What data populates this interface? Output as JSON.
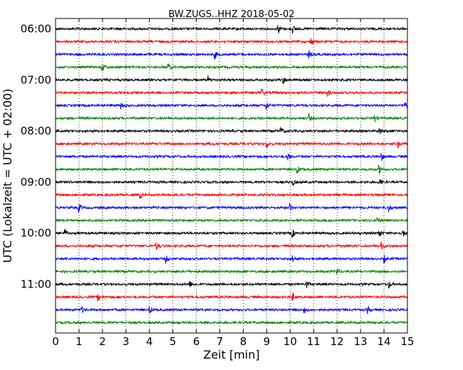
{
  "chart_data": {
    "type": "line",
    "title": "BW.ZUGS..HHZ 2018-05-02",
    "xlabel": "Zeit  [min]",
    "ylabel": "UTC (Lokalzeit = UTC + 02:00)",
    "xlim": [
      0,
      15
    ],
    "x_ticks": [
      "0",
      "1",
      "2",
      "3",
      "4",
      "5",
      "6",
      "7",
      "8",
      "9",
      "10",
      "11",
      "12",
      "13",
      "14",
      "15"
    ],
    "y_ticks": [
      "06:00",
      "07:00",
      "08:00",
      "09:00",
      "10:00",
      "11:00"
    ],
    "grid": "vertical dotted at each minute",
    "legend": "none",
    "color_cycle": [
      "#000000",
      "#ff0000",
      "#0000ff",
      "#008000"
    ],
    "traces": [
      {
        "start": "06:00",
        "color": "#000000",
        "events": [
          9.5,
          10.1
        ]
      },
      {
        "start": "06:15",
        "color": "#ff0000",
        "events": [
          10.9
        ]
      },
      {
        "start": "06:30",
        "color": "#0000ff",
        "events": [
          6.8,
          10.8
        ]
      },
      {
        "start": "06:45",
        "color": "#008000",
        "events": [
          2.0,
          4.8
        ]
      },
      {
        "start": "07:00",
        "color": "#000000",
        "events": [
          6.5,
          9.7
        ]
      },
      {
        "start": "07:15",
        "color": "#ff0000",
        "events": [
          8.8,
          11.6
        ]
      },
      {
        "start": "07:30",
        "color": "#0000ff",
        "events": [
          2.8,
          9.0,
          14.9
        ]
      },
      {
        "start": "07:45",
        "color": "#008000",
        "events": [
          10.8,
          13.6
        ]
      },
      {
        "start": "08:00",
        "color": "#000000",
        "events": [
          9.6,
          13.8
        ]
      },
      {
        "start": "08:15",
        "color": "#ff0000",
        "events": [
          9.0,
          14.6
        ]
      },
      {
        "start": "08:30",
        "color": "#0000ff",
        "events": [
          9.9,
          13.9
        ]
      },
      {
        "start": "08:45",
        "color": "#008000",
        "events": [
          10.3,
          13.8
        ]
      },
      {
        "start": "09:00",
        "color": "#000000",
        "events": [
          10.1,
          13.8
        ]
      },
      {
        "start": "09:15",
        "color": "#ff0000",
        "events": [
          3.6
        ]
      },
      {
        "start": "09:30",
        "color": "#0000ff",
        "events": [
          1.0,
          10.0,
          14.2
        ]
      },
      {
        "start": "09:45",
        "color": "#008000",
        "events": [
          13.7
        ]
      },
      {
        "start": "10:00",
        "color": "#000000",
        "events": [
          0.4,
          10.1,
          13.8,
          14.8
        ]
      },
      {
        "start": "10:15",
        "color": "#ff0000",
        "events": [
          4.3,
          13.9
        ]
      },
      {
        "start": "10:30",
        "color": "#0000ff",
        "events": [
          4.7,
          10.1,
          14.0
        ]
      },
      {
        "start": "10:45",
        "color": "#008000",
        "events": [
          12.0
        ]
      },
      {
        "start": "11:00",
        "color": "#000000",
        "events": [
          5.7,
          10.7,
          14.2
        ]
      },
      {
        "start": "11:15",
        "color": "#ff0000",
        "events": [
          1.8,
          10.1
        ]
      },
      {
        "start": "11:30",
        "color": "#0000ff",
        "events": [
          1.1,
          4.0,
          10.6,
          13.3
        ]
      },
      {
        "start": "11:45",
        "color": "#008000",
        "events": []
      }
    ]
  }
}
